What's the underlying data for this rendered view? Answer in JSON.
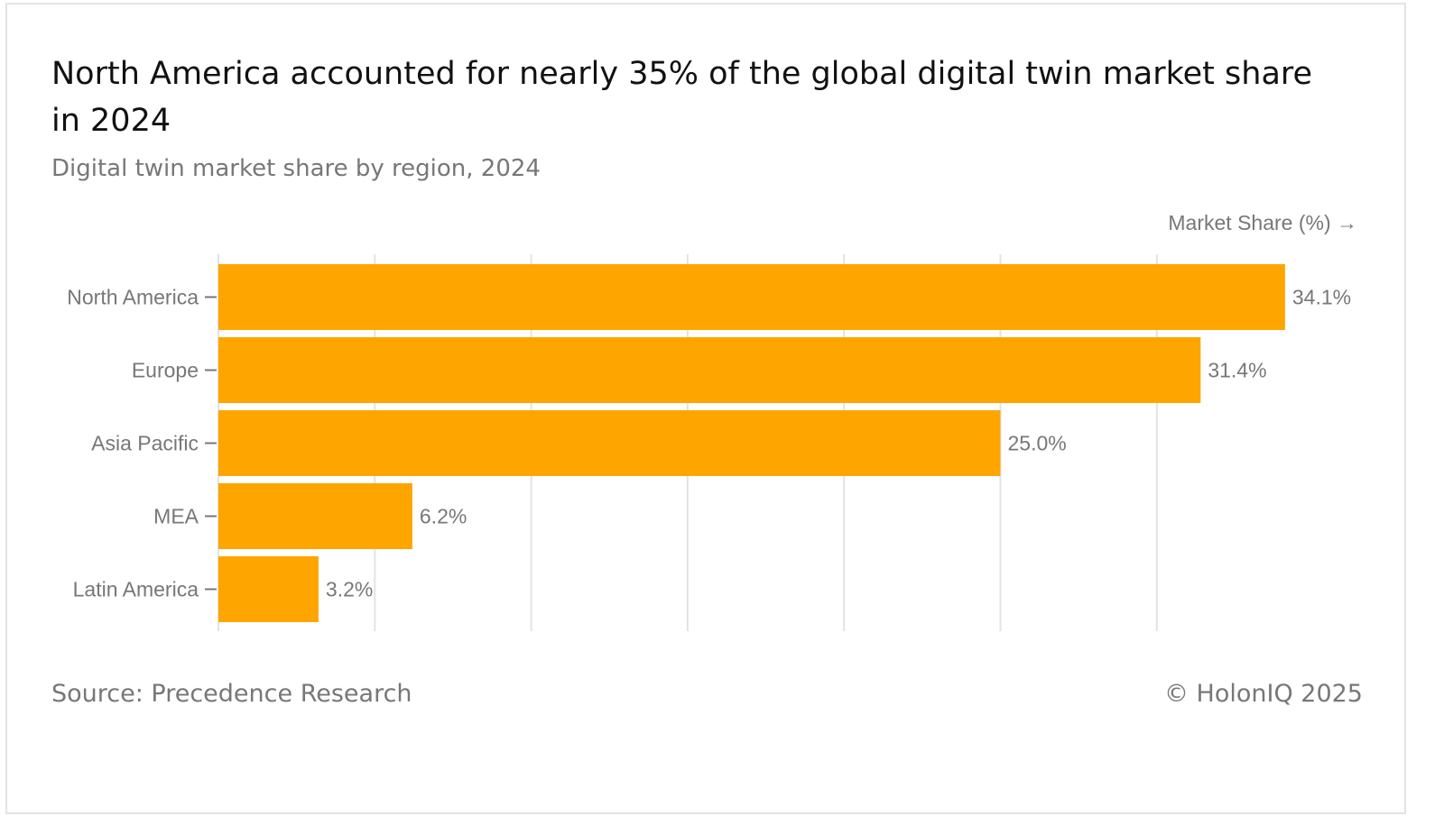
{
  "chart_data": {
    "type": "bar",
    "orientation": "horizontal",
    "title": "North America accounted for nearly 35% of the global digital twin market share in 2024",
    "subtitle": "Digital twin market share by region, 2024",
    "xlabel": "Market Share (%) →",
    "ylabel": "",
    "categories": [
      "North America",
      "Europe",
      "Asia Pacific",
      "MEA",
      "Latin America"
    ],
    "values": [
      34.1,
      31.4,
      25.0,
      6.2,
      3.2
    ],
    "data_labels": [
      "34.1%",
      "31.4%",
      "25.0%",
      "6.2%",
      "3.2%"
    ],
    "xlim": [
      0,
      35
    ],
    "grid_step": 5,
    "grid": true,
    "bar_color": "#FFA500"
  },
  "footer": {
    "source": "Source: Precedence Research",
    "copyright": "© HolonIQ 2025"
  }
}
